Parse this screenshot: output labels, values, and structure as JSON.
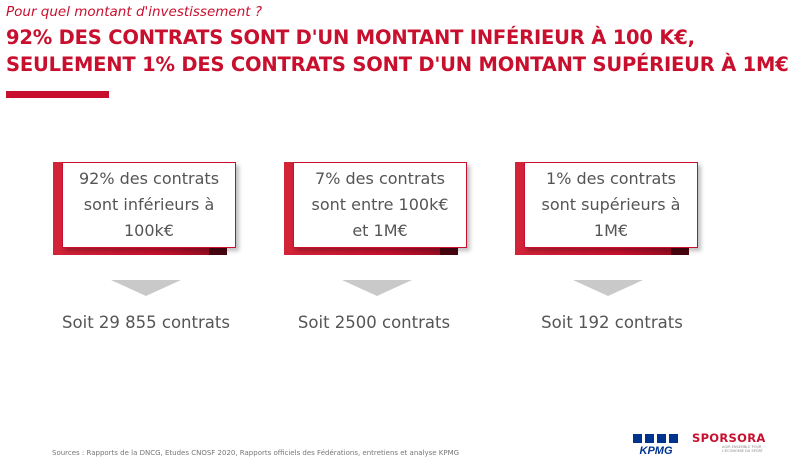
{
  "header": {
    "subtitle": "Pour quel montant d'investissement ?",
    "headline_line1": "92% DES CONTRATS SONT D'UN MONTANT INFÉRIEUR À 100 K€,",
    "headline_line2": "SEULEMENT 1% DES CONTRATS SONT D'UN MONTANT SUPÉRIEUR À 1M€"
  },
  "cards": [
    {
      "lines": [
        "92% des contrats",
        "sont inférieurs à",
        "100k€"
      ],
      "count": "Soit 29 855 contrats"
    },
    {
      "lines": [
        "7% des contrats",
        "sont entre 100k€",
        "et 1M€"
      ],
      "count": "Soit 2500 contrats"
    },
    {
      "lines": [
        "1% des contrats",
        "sont supérieurs à",
        "1M€"
      ],
      "count": "Soit 192 contrats"
    }
  ],
  "footer": {
    "sources": "Sources : Rapports de la DNCG, Etudes CNOSF 2020, Rapports officiels des Fédérations, entretiens et analyse KPMG",
    "kpmg_logo_text": "KPMG",
    "sporsora_logo_text": "SPORSORA",
    "sporsora_tagline": "AGIR ENSEMBLE POUR L'ÉCONOMIE DU SPORT"
  },
  "colors": {
    "brand_red": "#c8102e",
    "text_gray": "#555555",
    "arrow_gray": "#c9c9c9",
    "kpmg_blue": "#00338d"
  }
}
